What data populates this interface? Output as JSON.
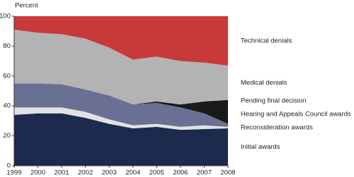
{
  "chart_data": {
    "type": "stacked-area",
    "y_label": "Percent",
    "x": [
      1999,
      2000,
      2001,
      2002,
      2003,
      2004,
      2005,
      2006,
      2007,
      2008
    ],
    "xlim": [
      1999,
      2008
    ],
    "xticks": [
      1999,
      2000,
      2001,
      2002,
      2003,
      2004,
      2005,
      2006,
      2007,
      2008
    ],
    "ylim": [
      0,
      100
    ],
    "yticks": [
      0,
      20,
      40,
      60,
      80,
      100
    ],
    "grid": false,
    "series": [
      {
        "name": "Initial awards",
        "color": "#1c2a4d",
        "values": [
          34,
          35,
          35,
          32,
          28,
          25,
          26,
          24,
          24.5,
          25
        ]
      },
      {
        "name": "Reconsideration awards",
        "color": "#e2e2e2",
        "values": [
          5,
          4,
          4,
          4,
          3,
          2,
          2,
          2,
          2.5,
          1
        ]
      },
      {
        "name": "Hearing and Appeals Council awards",
        "color": "#6a7094",
        "values": [
          16,
          16,
          15.5,
          15,
          16,
          14,
          14,
          13,
          8,
          2
        ]
      },
      {
        "name": "Pending final decision",
        "color": "#1a1a1a",
        "values": [
          0,
          0,
          0,
          0,
          0,
          0,
          1,
          2,
          8,
          16
        ]
      },
      {
        "name": "Medical denials",
        "color": "#b3b3b3",
        "values": [
          36,
          34,
          33.5,
          34,
          32,
          30,
          30,
          29,
          26,
          23
        ]
      },
      {
        "name": "Technical denials",
        "color": "#c8393a",
        "values": [
          9,
          11,
          12,
          15,
          21,
          29,
          27,
          30,
          31,
          33
        ]
      }
    ]
  }
}
